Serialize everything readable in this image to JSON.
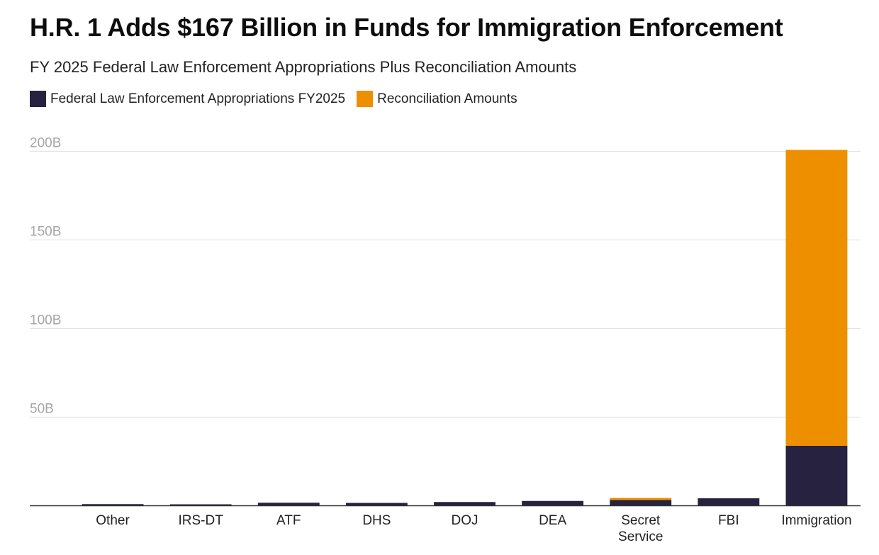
{
  "header": {
    "title": "H.R. 1 Adds $167 Billion in Funds for Immigration Enforcement",
    "subtitle": "FY 2025 Federal Law Enforcement Appropriations Plus Reconciliation Amounts"
  },
  "legend": {
    "placement": "top-left",
    "items": [
      {
        "label": "Federal Law Enforcement Appropriations FY2025",
        "color": "#27223f"
      },
      {
        "label": "Reconciliation Amounts",
        "color": "#ee8f00"
      }
    ]
  },
  "chart_data": {
    "type": "bar",
    "stacked": true,
    "title": "H.R. 1 Adds $167 Billion in Funds for Immigration Enforcement",
    "subtitle": "FY 2025 Federal Law Enforcement Appropriations Plus Reconciliation Amounts",
    "xlabel": "",
    "ylabel": "",
    "categories": [
      "Other",
      "IRS-DT",
      "ATF",
      "DHS",
      "DOJ",
      "DEA",
      "Secret Service",
      "FBI",
      "Immigration"
    ],
    "series": [
      {
        "name": "Federal Law Enforcement Appropriations FY2025",
        "color": "#27223f",
        "values": [
          0.9,
          0.8,
          1.7,
          1.6,
          2.1,
          2.7,
          3.2,
          4.2,
          33.8
        ]
      },
      {
        "name": "Reconciliation Amounts",
        "color": "#ee8f00",
        "values": [
          0,
          0,
          0,
          0,
          0,
          0,
          1.2,
          0,
          167
        ]
      }
    ],
    "ylim": [
      0,
      200
    ],
    "yticks": [
      {
        "value": 50,
        "label": "50B"
      },
      {
        "value": 100,
        "label": "100B"
      },
      {
        "value": 150,
        "label": "150B"
      },
      {
        "value": 200,
        "label": "200B"
      }
    ],
    "grid": true,
    "axis_color": "#333333",
    "grid_color": "#e3e3e3"
  }
}
